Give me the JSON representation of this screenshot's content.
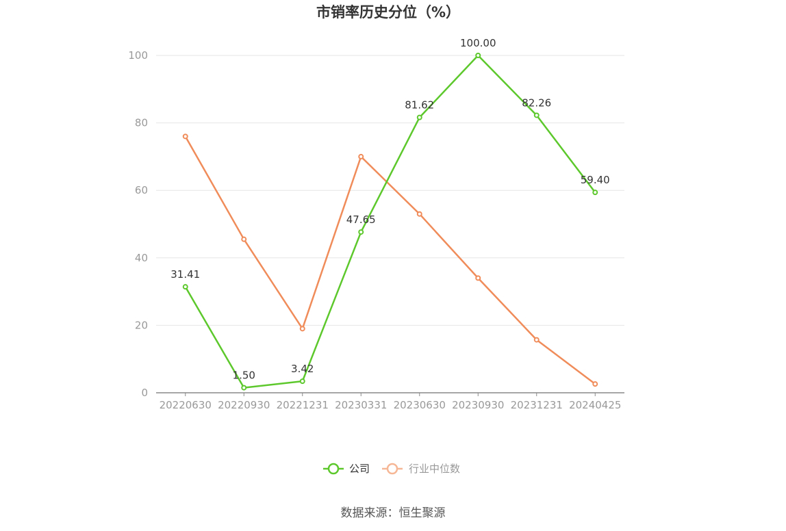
{
  "chart_data": {
    "type": "line",
    "title": "市销率历史分位（%）",
    "categories": [
      "20220630",
      "20220930",
      "20221231",
      "20230331",
      "20230630",
      "20230930",
      "20231231",
      "20240425"
    ],
    "ylim": [
      0,
      100
    ],
    "yticks": [
      0,
      20,
      40,
      60,
      80,
      100
    ],
    "grid": true,
    "legend_position": "bottom",
    "series": [
      {
        "name": "公司",
        "color": "#5cc82c",
        "values": [
          31.41,
          1.5,
          3.42,
          47.65,
          81.62,
          100.0,
          82.26,
          59.4
        ],
        "labels": [
          "31.41",
          "1.50",
          "3.42",
          "47.65",
          "81.62",
          "100.00",
          "82.26",
          "59.40"
        ]
      },
      {
        "name": "行业中位数",
        "color": "#f08c5a",
        "values": [
          76,
          45.5,
          19,
          70,
          53,
          34,
          15.7,
          2.6
        ]
      }
    ]
  },
  "source": "数据来源：恒生聚源"
}
